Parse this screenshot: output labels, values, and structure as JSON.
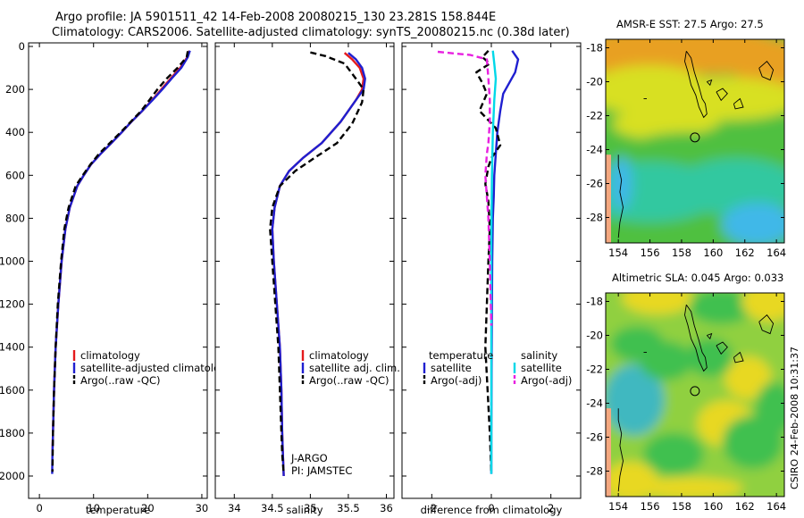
{
  "header": {
    "line1": "Argo profile: JA 5901511_42 14-Feb-2008 20080215_130 23.281S 158.844E",
    "line2": "Climatology: CARS2006. Satellite-adjusted climatology: synTS_20080215.nc (0.38d later)"
  },
  "credit": "CSIRO 24-Feb-2008 10:31:37",
  "chart_data": [
    {
      "type": "line",
      "name": "temperature-profile",
      "xlabel": "temperature",
      "ylabel": "",
      "xlim": [
        -2,
        31
      ],
      "ylim": [
        2050,
        0
      ],
      "xticks": [
        0,
        10,
        20,
        30
      ],
      "yticks": [
        0,
        200,
        400,
        600,
        800,
        1000,
        1200,
        1400,
        1600,
        1800,
        2000
      ],
      "legend_position": "lower-middle",
      "series": [
        {
          "name": "climatology",
          "color": "#e41a1c",
          "dash": "solid",
          "x": [
            27.7,
            27.3,
            26.0,
            24.2,
            22.5,
            20.8,
            19.0,
            17.0,
            15.2,
            13.3,
            11.3,
            9.5,
            8.2,
            7.0,
            5.6,
            4.8,
            4.1,
            3.5,
            3.0,
            2.7,
            2.5,
            2.4
          ],
          "y": [
            20,
            50,
            100,
            150,
            200,
            250,
            300,
            350,
            400,
            450,
            500,
            550,
            600,
            650,
            750,
            850,
            1000,
            1200,
            1400,
            1600,
            1800,
            1900
          ]
        },
        {
          "name": "satellite-adjusted climatology",
          "color": "#1f1fd0",
          "dash": "solid",
          "x": [
            27.8,
            27.4,
            26.2,
            24.4,
            22.7,
            20.9,
            19.0,
            17.0,
            15.2,
            13.3,
            11.3,
            9.5,
            8.2,
            7.0,
            5.6,
            4.8,
            4.1,
            3.5,
            3.0,
            2.7,
            2.5,
            2.4,
            2.35
          ],
          "y": [
            20,
            50,
            100,
            150,
            200,
            250,
            300,
            350,
            400,
            450,
            500,
            550,
            600,
            650,
            750,
            850,
            1000,
            1200,
            1400,
            1600,
            1800,
            1900,
            1990
          ]
        },
        {
          "name": "Argo(..raw -QC)",
          "color": "#000000",
          "dash": "dashed",
          "x": [
            27.4,
            27.2,
            25.5,
            23.5,
            21.8,
            20.3,
            18.8,
            16.9,
            15.0,
            13.0,
            11.0,
            9.4,
            8.0,
            6.7,
            5.4,
            4.6,
            4.0,
            3.4,
            3.0,
            2.7,
            2.5,
            2.4
          ],
          "y": [
            22,
            50,
            100,
            150,
            200,
            250,
            300,
            350,
            400,
            450,
            500,
            550,
            600,
            650,
            750,
            850,
            1000,
            1200,
            1400,
            1600,
            1800,
            1980
          ]
        }
      ]
    },
    {
      "type": "line",
      "name": "salinity-profile",
      "xlabel": "salinity",
      "ylabel": "",
      "xlim": [
        33.75,
        36.1
      ],
      "ylim": [
        2050,
        0
      ],
      "xticks": [
        34,
        34.5,
        35,
        35.5,
        36
      ],
      "legend_position": "lower-middle",
      "annotations": [
        "J-ARGO",
        "PI: JAMSTEC"
      ],
      "series": [
        {
          "name": "climatology",
          "color": "#e41a1c",
          "dash": "solid",
          "x": [
            35.45,
            35.55,
            35.65,
            35.7,
            35.68,
            35.6,
            35.4,
            35.15,
            34.9,
            34.72,
            34.6,
            34.53,
            34.5,
            34.52,
            34.56,
            34.6,
            34.62,
            34.63,
            34.64,
            34.65
          ],
          "y": [
            30,
            60,
            100,
            150,
            200,
            250,
            350,
            450,
            520,
            580,
            650,
            750,
            850,
            1000,
            1200,
            1400,
            1600,
            1800,
            1900,
            2000
          ]
        },
        {
          "name": "satellite adj. clim.",
          "color": "#1f1fd0",
          "dash": "solid",
          "x": [
            35.5,
            35.6,
            35.68,
            35.72,
            35.7,
            35.6,
            35.4,
            35.15,
            34.9,
            34.72,
            34.6,
            34.53,
            34.5,
            34.52,
            34.56,
            34.6,
            34.62,
            34.63,
            34.64,
            34.65
          ],
          "y": [
            30,
            60,
            100,
            150,
            200,
            250,
            350,
            450,
            520,
            580,
            650,
            750,
            850,
            1000,
            1200,
            1400,
            1600,
            1800,
            1900,
            2000
          ]
        },
        {
          "name": "Argo(..raw -QC)",
          "color": "#000000",
          "dash": "dashed",
          "x": [
            35.0,
            35.2,
            35.45,
            35.6,
            35.7,
            35.68,
            35.55,
            35.35,
            35.05,
            34.8,
            34.6,
            34.5,
            34.47,
            34.5,
            34.54,
            34.58,
            34.6,
            34.62,
            34.63,
            34.65
          ],
          "y": [
            28,
            45,
            80,
            150,
            200,
            260,
            360,
            450,
            520,
            580,
            650,
            750,
            850,
            1000,
            1200,
            1400,
            1600,
            1800,
            1900,
            1990
          ]
        }
      ]
    },
    {
      "type": "line",
      "name": "difference-profile",
      "xlabel": "difference from climatology",
      "ylabel": "",
      "xlim": [
        -3,
        3
      ],
      "ylim": [
        2050,
        0
      ],
      "xticks": [
        -2,
        0,
        2
      ],
      "legend_position": "lower-middle",
      "legend_headers": [
        "temperature",
        "salinity"
      ],
      "series": [
        {
          "name": "satellite",
          "group": "temperature",
          "color": "#1f1fd0",
          "dash": "solid",
          "x": [
            0.7,
            0.9,
            0.8,
            0.6,
            0.4,
            0.3,
            0.2,
            0.15,
            0.1,
            0.08,
            0.05,
            0.03,
            0.02,
            0.01,
            0.0,
            0.0
          ],
          "y": [
            20,
            60,
            120,
            170,
            220,
            300,
            400,
            500,
            600,
            700,
            800,
            1000,
            1200,
            1500,
            1800,
            1990
          ]
        },
        {
          "name": "Argo(-adj)",
          "group": "temperature",
          "color": "#000000",
          "dash": "dashed",
          "x": [
            -0.1,
            -0.3,
            -0.05,
            -0.5,
            -0.3,
            -0.15,
            -0.4,
            0.15,
            0.3,
            0.0,
            -0.1,
            -0.2,
            -0.1,
            -0.05,
            -0.1,
            -0.2,
            -0.05,
            0.0
          ],
          "y": [
            20,
            50,
            80,
            120,
            170,
            220,
            300,
            380,
            460,
            520,
            560,
            640,
            720,
            850,
            1000,
            1400,
            1800,
            1990
          ]
        },
        {
          "name": "satellite",
          "group": "salinity",
          "color": "#00d8e8",
          "dash": "solid",
          "x": [
            0.05,
            0.1,
            0.15,
            0.1,
            0.05,
            0.02,
            0.0,
            0.0,
            0.0,
            0.0
          ],
          "y": [
            20,
            80,
            150,
            250,
            400,
            600,
            900,
            1300,
            1700,
            1990
          ]
        },
        {
          "name": "Argo(-adj)",
          "group": "salinity",
          "color": "#e820e0",
          "dash": "dashed",
          "x": [
            -1.8,
            -0.7,
            -0.15,
            -0.1,
            -0.05,
            -0.05,
            -0.1,
            -0.15,
            -0.2,
            -0.15,
            -0.1,
            -0.05,
            0.0
          ],
          "y": [
            25,
            40,
            60,
            150,
            250,
            350,
            450,
            500,
            600,
            700,
            800,
            1000,
            1300
          ]
        }
      ]
    },
    {
      "type": "heatmap",
      "name": "sst-map",
      "title": "AMSR-E SST: 27.5 Argo: 27.5",
      "xlim": [
        153.2,
        164.5
      ],
      "ylim": [
        -29.5,
        -17.5
      ],
      "xticks": [
        154,
        156,
        158,
        160,
        162,
        164
      ],
      "yticks": [
        -18,
        -20,
        -22,
        -24,
        -26,
        -28
      ],
      "colors": {
        "warm": "#e8a020",
        "mid": "#d8e020",
        "green": "#50c040",
        "cool": "#30c8a0",
        "cold": "#40b8e8",
        "land": "#f4a880"
      },
      "marker": {
        "lon": 158.844,
        "lat": -23.281
      }
    },
    {
      "type": "heatmap",
      "name": "sla-map",
      "title": "Altimetric SLA: 0.045 Argo: 0.033",
      "xlim": [
        153.2,
        164.5
      ],
      "ylim": [
        -29.5,
        -17.5
      ],
      "xticks": [
        154,
        156,
        158,
        160,
        162,
        164
      ],
      "yticks": [
        -18,
        -20,
        -22,
        -24,
        -26,
        -28
      ],
      "colors": {
        "high": "#e8d820",
        "mid": "#90d040",
        "green": "#40c050",
        "low": "#40b8c0",
        "land": "#f4a880"
      },
      "marker": {
        "lon": 158.844,
        "lat": -23.281
      }
    }
  ]
}
